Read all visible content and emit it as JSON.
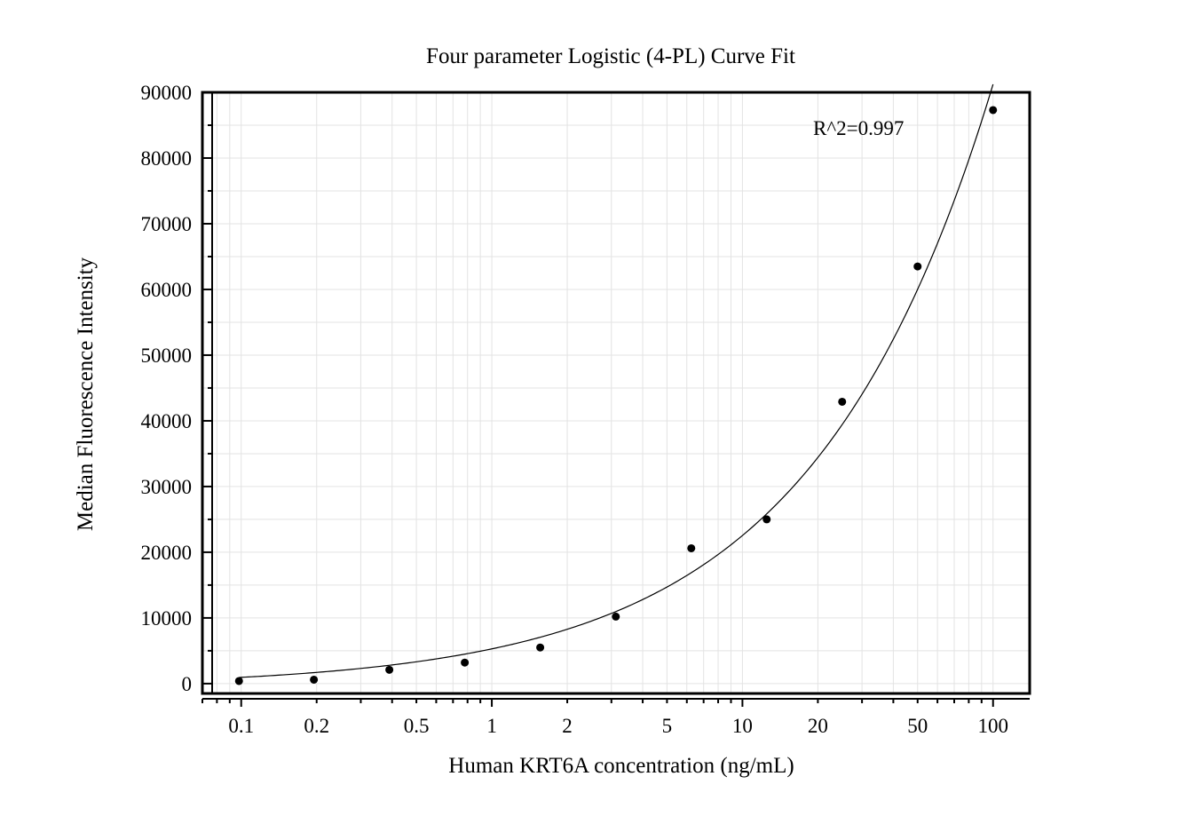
{
  "chart_data": {
    "type": "scatter",
    "title": "Four parameter Logistic (4-PL) Curve Fit",
    "xlabel": "Human KRT6A concentration (ng/mL)",
    "ylabel": "Median Fluorescence Intensity",
    "x_scale": "log",
    "xlim": [
      0.07,
      140
    ],
    "ylim": [
      -1500,
      90000
    ],
    "x_ticks": [
      0.1,
      0.2,
      0.5,
      1,
      2,
      5,
      10,
      20,
      50,
      100
    ],
    "x_tick_labels": [
      "0.1",
      "0.2",
      "0.5",
      "1",
      "2",
      "5",
      "10",
      "20",
      "50",
      "100"
    ],
    "y_ticks": [
      0,
      10000,
      20000,
      30000,
      40000,
      50000,
      60000,
      70000,
      80000,
      90000
    ],
    "y_tick_labels": [
      "0",
      "10000",
      "20000",
      "30000",
      "40000",
      "50000",
      "60000",
      "70000",
      "80000",
      "90000"
    ],
    "grid": true,
    "annotation": "R^2=0.997",
    "series": [
      {
        "points": [
          {
            "x": 0.098,
            "y": 400
          },
          {
            "x": 0.195,
            "y": 600
          },
          {
            "x": 0.39,
            "y": 2100
          },
          {
            "x": 0.78,
            "y": 3200
          },
          {
            "x": 1.56,
            "y": 5500
          },
          {
            "x": 3.125,
            "y": 10200
          },
          {
            "x": 6.25,
            "y": 20600
          },
          {
            "x": 12.5,
            "y": 25000
          },
          {
            "x": 25,
            "y": 42900
          },
          {
            "x": 50,
            "y": 63500
          },
          {
            "x": 100,
            "y": 87300
          }
        ],
        "color": "#000000"
      }
    ],
    "fit_curve": {
      "model": "4PL",
      "color": "#000000"
    }
  }
}
